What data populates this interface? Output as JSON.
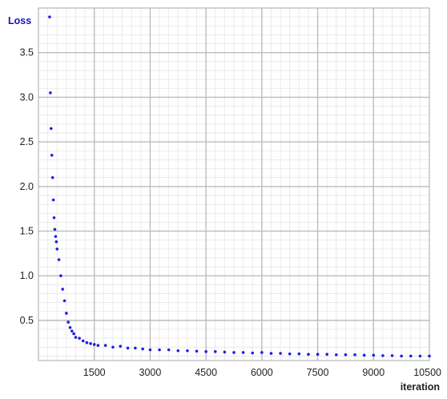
{
  "chart_data": {
    "type": "scatter",
    "title": "",
    "ylabel": "Loss",
    "xlabel": "iteration",
    "xlim": [
      0,
      10500
    ],
    "ylim": [
      0.05,
      4.0
    ],
    "xticks": [
      1500,
      3000,
      4500,
      6000,
      7500,
      9000,
      10500
    ],
    "xtick_labels": [
      "1500",
      "3000",
      "4500",
      "6000",
      "7500",
      "9000",
      "10500"
    ],
    "yticks": [
      0.5,
      1.0,
      1.5,
      2.0,
      2.5,
      3.0,
      3.5
    ],
    "ytick_labels": [
      "0.5",
      "1.0",
      "1.5",
      "2.0",
      "2.5",
      "3.0",
      "3.5"
    ],
    "grid": true,
    "minor_grid": true,
    "legend": "none",
    "colors": {
      "series": "#1f1fe6",
      "ylabel": "#1414c8",
      "xlabel": "#222222",
      "major_grid": "#bdbdbd",
      "minor_grid": "#e6e6e6",
      "frame": "#a9a9a9"
    },
    "series": [
      {
        "x": [
          300,
          320,
          340,
          360,
          380,
          400,
          420,
          440,
          460,
          480,
          500,
          550,
          600,
          650,
          700,
          750,
          800,
          850,
          900,
          950,
          1000,
          1100,
          1200,
          1300,
          1400,
          1500,
          1600,
          1800,
          2000,
          2200,
          2400,
          2600,
          2800,
          3000,
          3250,
          3500,
          3750,
          4000,
          4250,
          4500,
          4750,
          5000,
          5250,
          5500,
          5750,
          6000,
          6250,
          6500,
          6750,
          7000,
          7250,
          7500,
          7750,
          8000,
          8250,
          8500,
          8750,
          9000,
          9250,
          9500,
          9750,
          10000,
          10250,
          10500
        ],
        "y": [
          3.9,
          3.05,
          2.65,
          2.35,
          2.1,
          1.85,
          1.65,
          1.52,
          1.44,
          1.38,
          1.3,
          1.18,
          1.0,
          0.85,
          0.72,
          0.58,
          0.48,
          0.42,
          0.38,
          0.35,
          0.31,
          0.3,
          0.27,
          0.25,
          0.24,
          0.23,
          0.22,
          0.22,
          0.2,
          0.21,
          0.19,
          0.19,
          0.18,
          0.17,
          0.17,
          0.17,
          0.16,
          0.16,
          0.155,
          0.15,
          0.15,
          0.145,
          0.14,
          0.14,
          0.135,
          0.14,
          0.13,
          0.13,
          0.125,
          0.125,
          0.12,
          0.12,
          0.12,
          0.115,
          0.115,
          0.115,
          0.11,
          0.11,
          0.105,
          0.105,
          0.1,
          0.1,
          0.1,
          0.1
        ]
      }
    ]
  }
}
